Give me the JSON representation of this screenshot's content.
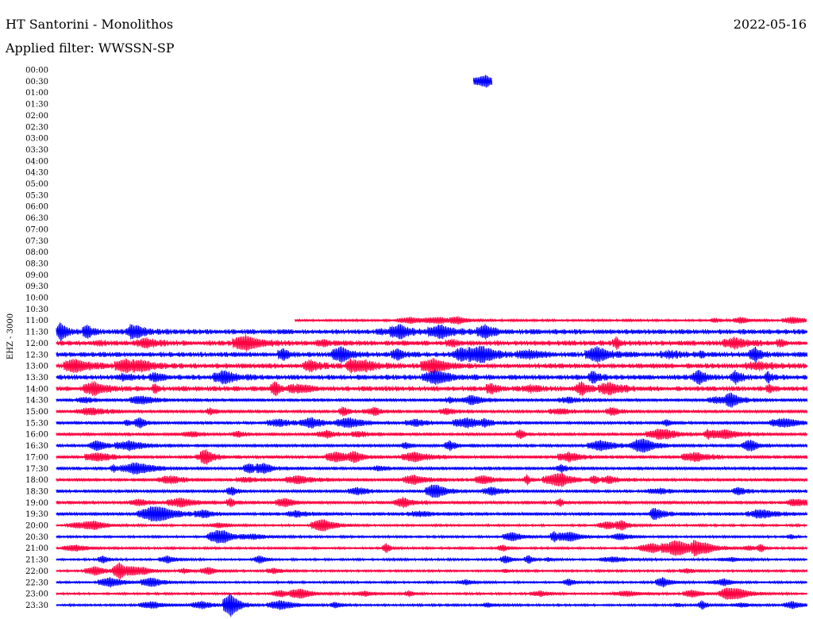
{
  "header": {
    "station": "HT Santorini - Monolithos",
    "date": "2022-05-16",
    "filter": "Applied filter: WWSSN-SP"
  },
  "chart_data": {
    "type": "line",
    "title": "HT Santorini - Monolithos",
    "subtitle": "Applied filter: WWSSN-SP",
    "ylabel": "EHZ - 3000",
    "trace_colors": [
      "#ff0040",
      "#0000ff"
    ],
    "rows": [
      {
        "time": "00:00",
        "data": false,
        "start": 0
      },
      {
        "time": "00:30",
        "data": true,
        "start": 0.556,
        "end": 0.58
      },
      {
        "time": "01:00",
        "data": false,
        "start": 0
      },
      {
        "time": "01:30",
        "data": false,
        "start": 0
      },
      {
        "time": "02:00",
        "data": false,
        "start": 0
      },
      {
        "time": "02:30",
        "data": false,
        "start": 0
      },
      {
        "time": "03:00",
        "data": false,
        "start": 0
      },
      {
        "time": "03:30",
        "data": false,
        "start": 0
      },
      {
        "time": "04:00",
        "data": false,
        "start": 0
      },
      {
        "time": "04:30",
        "data": false,
        "start": 0
      },
      {
        "time": "05:00",
        "data": false,
        "start": 0
      },
      {
        "time": "05:30",
        "data": false,
        "start": 0
      },
      {
        "time": "06:00",
        "data": false,
        "start": 0
      },
      {
        "time": "06:30",
        "data": false,
        "start": 0
      },
      {
        "time": "07:00",
        "data": false,
        "start": 0
      },
      {
        "time": "07:30",
        "data": false,
        "start": 0
      },
      {
        "time": "08:00",
        "data": false,
        "start": 0
      },
      {
        "time": "08:30",
        "data": false,
        "start": 0
      },
      {
        "time": "09:00",
        "data": false,
        "start": 0
      },
      {
        "time": "09:30",
        "data": false,
        "start": 0
      },
      {
        "time": "10:00",
        "data": false,
        "start": 0
      },
      {
        "time": "10:30",
        "data": false,
        "start": 0
      },
      {
        "time": "11:00",
        "data": true,
        "start": 0.318,
        "end": 1
      },
      {
        "time": "11:30",
        "data": true,
        "start": 0,
        "end": 1
      },
      {
        "time": "12:00",
        "data": true,
        "start": 0,
        "end": 1
      },
      {
        "time": "12:30",
        "data": true,
        "start": 0,
        "end": 1
      },
      {
        "time": "13:00",
        "data": true,
        "start": 0,
        "end": 1
      },
      {
        "time": "13:30",
        "data": true,
        "start": 0,
        "end": 1
      },
      {
        "time": "14:00",
        "data": true,
        "start": 0,
        "end": 1
      },
      {
        "time": "14:30",
        "data": true,
        "start": 0,
        "end": 1
      },
      {
        "time": "15:00",
        "data": true,
        "start": 0,
        "end": 1
      },
      {
        "time": "15:30",
        "data": true,
        "start": 0,
        "end": 1
      },
      {
        "time": "16:00",
        "data": true,
        "start": 0,
        "end": 1
      },
      {
        "time": "16:30",
        "data": true,
        "start": 0,
        "end": 1
      },
      {
        "time": "17:00",
        "data": true,
        "start": 0,
        "end": 1
      },
      {
        "time": "17:30",
        "data": true,
        "start": 0,
        "end": 1
      },
      {
        "time": "18:00",
        "data": true,
        "start": 0,
        "end": 1
      },
      {
        "time": "18:30",
        "data": true,
        "start": 0,
        "end": 1
      },
      {
        "time": "19:00",
        "data": true,
        "start": 0,
        "end": 1
      },
      {
        "time": "19:30",
        "data": true,
        "start": 0,
        "end": 1
      },
      {
        "time": "20:00",
        "data": true,
        "start": 0,
        "end": 1
      },
      {
        "time": "20:30",
        "data": true,
        "start": 0,
        "end": 1
      },
      {
        "time": "21:00",
        "data": true,
        "start": 0,
        "end": 1
      },
      {
        "time": "21:30",
        "data": true,
        "start": 0,
        "end": 1
      },
      {
        "time": "22:00",
        "data": true,
        "start": 0,
        "end": 1
      },
      {
        "time": "22:30",
        "data": true,
        "start": 0,
        "end": 1
      },
      {
        "time": "23:00",
        "data": true,
        "start": 0,
        "end": 1
      },
      {
        "time": "23:30",
        "data": true,
        "start": 0,
        "end": 1
      }
    ]
  }
}
